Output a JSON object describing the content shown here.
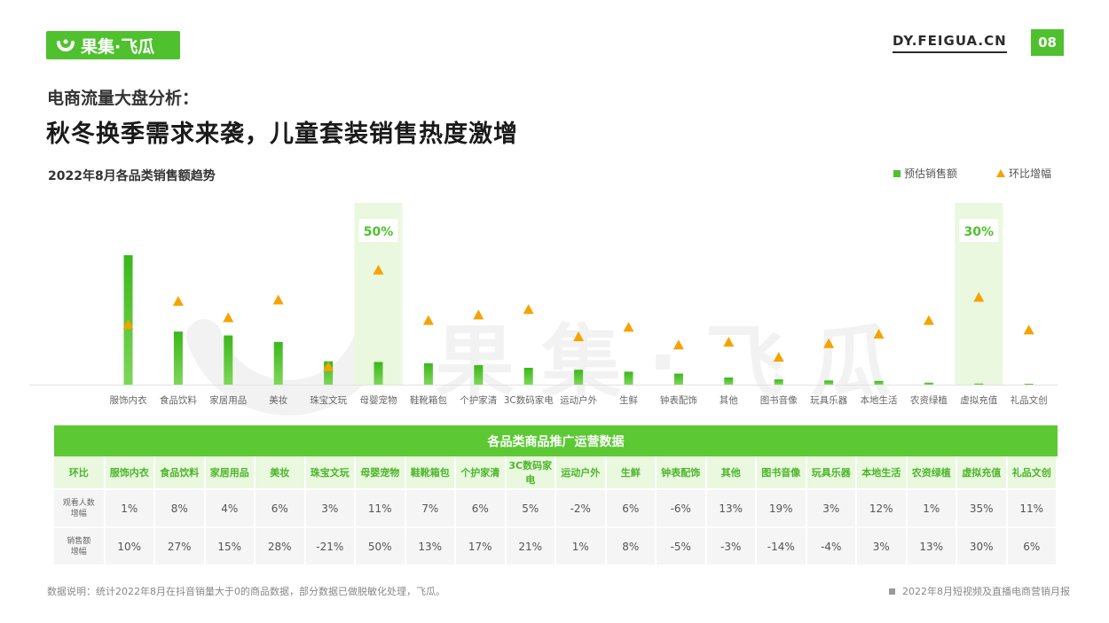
{
  "brand": {
    "logo_text": "果集·飞瓜",
    "site": "DY.FEIGUA.CN",
    "page_number": "08",
    "watermark": "果集·飞瓜"
  },
  "header": {
    "subtitle": "电商流量大盘分析：",
    "title": "秋冬换季需求来袭，儿童套装销售热度激增"
  },
  "chart_data": {
    "type": "bar",
    "title": "2022年8月各品类销售额趋势",
    "categories": [
      "服饰内衣",
      "食品饮料",
      "家居用品",
      "美妆",
      "珠宝文玩",
      "母婴宠物",
      "鞋靴箱包",
      "个护家清",
      "3C数码家电",
      "运动户外",
      "生鲜",
      "钟表配饰",
      "其他",
      "图书音像",
      "玩具乐器",
      "本地生活",
      "农资绿植",
      "虚拟充值",
      "礼品文创"
    ],
    "series": [
      {
        "name": "预估销售额",
        "kind": "bar",
        "values": [
          100,
          41,
          38,
          33,
          18,
          17.5,
          16.5,
          15,
          13,
          11.5,
          10,
          8.5,
          5.5,
          4,
          3.2,
          2.8,
          1.5,
          0.8,
          0.3
        ]
      },
      {
        "name": "环比增幅",
        "kind": "marker",
        "unit": "%",
        "values": [
          10,
          27,
          15,
          28,
          -21,
          50,
          13,
          17,
          21,
          1,
          8,
          -5,
          -3,
          -14,
          -4,
          3,
          13,
          30,
          6
        ]
      }
    ],
    "highlights": [
      {
        "category": "母婴宠物",
        "label": "50%"
      },
      {
        "category": "虚拟充值",
        "label": "30%"
      }
    ],
    "legend": [
      "预估销售额",
      "环比增幅"
    ],
    "legend_position": "top-right",
    "grid": false,
    "colors": {
      "bar": "#4fc12f",
      "marker": "#f5a300",
      "highlight_band": "#e9f8de"
    }
  },
  "table": {
    "title": "各品类商品推广运营数据",
    "columns": [
      "环比",
      "服饰内衣",
      "食品饮料",
      "家居用品",
      "美妆",
      "珠宝文玩",
      "母婴宠物",
      "鞋靴箱包",
      "个护家清",
      "3C数码家电",
      "运动户外",
      "生鲜",
      "钟表配饰",
      "其他",
      "图书音像",
      "玩具乐器",
      "本地生活",
      "农资绿植",
      "虚拟充值",
      "礼品文创"
    ],
    "rows": [
      {
        "label_line1": "观看人数",
        "label_line2": "增幅",
        "values": [
          "1%",
          "8%",
          "4%",
          "6%",
          "3%",
          "11%",
          "7%",
          "6%",
          "5%",
          "-2%",
          "6%",
          "-6%",
          "13%",
          "19%",
          "3%",
          "12%",
          "1%",
          "35%",
          "11%"
        ]
      },
      {
        "label_line1": "销售额",
        "label_line2": "增幅",
        "values": [
          "10%",
          "27%",
          "15%",
          "28%",
          "-21%",
          "50%",
          "13%",
          "17%",
          "21%",
          "1%",
          "8%",
          "-5%",
          "-3%",
          "-14%",
          "-4%",
          "3%",
          "13%",
          "30%",
          "6%"
        ]
      }
    ]
  },
  "footer": {
    "note": "数据说明：统计2022年8月在抖音销量大于0的商品数据，部分数据已做脱敏化处理，飞瓜。",
    "report": "2022年8月短视频及直播电商营销月报"
  }
}
